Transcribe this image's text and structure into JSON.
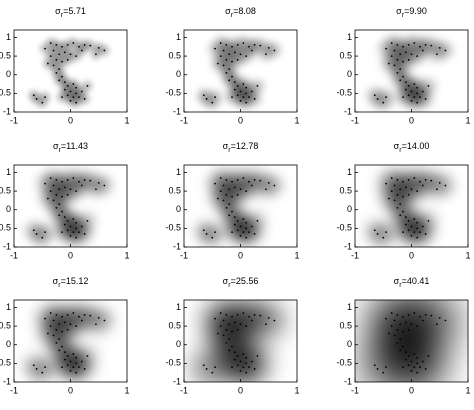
{
  "chart_data": [
    {
      "type": "scatter",
      "title": {
        "symbol": "σ",
        "subscript": "r",
        "text": "=5.71"
      },
      "x": [
        -0.35,
        -0.25,
        -0.15,
        -0.05,
        0.05,
        0.15,
        0.25,
        0.35,
        0.5,
        0.6,
        -0.3,
        -0.2,
        -0.1,
        0,
        0.1,
        -0.35,
        -0.25,
        -0.15,
        -0.3,
        -0.2,
        -0.25,
        -0.15,
        -0.2,
        -0.1,
        -0.05,
        0.05,
        0.1,
        -0.1,
        0,
        0.1,
        0.2,
        -0.05,
        0.05,
        0.15,
        -0.15,
        0,
        0.1,
        0.25,
        0.3,
        -0.4,
        -0.65,
        -0.6,
        -0.5,
        -0.45,
        0.45,
        -0.45,
        0.2,
        -0.05
      ],
      "y": [
        0.85,
        0.8,
        0.75,
        0.8,
        0.85,
        0.75,
        0.8,
        0.78,
        0.72,
        0.65,
        0.65,
        0.55,
        0.6,
        0.55,
        0.5,
        0.5,
        0.4,
        0.35,
        0.25,
        0.15,
        0.05,
        -0.05,
        -0.15,
        -0.2,
        -0.3,
        -0.25,
        -0.35,
        -0.4,
        -0.45,
        -0.5,
        -0.45,
        -0.55,
        -0.6,
        -0.6,
        -0.6,
        -0.7,
        -0.75,
        -0.65,
        -0.3,
        0.3,
        -0.55,
        -0.65,
        -0.75,
        -0.6,
        0.55,
        0.7,
        0.65,
        0.4
      ],
      "xlim": [
        -1,
        1
      ],
      "ylim": [
        -1,
        1.2
      ],
      "xticks": [
        -1,
        0,
        1
      ],
      "yticks": [
        -1,
        -0.5,
        0,
        0.5,
        1
      ]
    },
    {
      "type": "scatter",
      "title": {
        "symbol": "σ",
        "subscript": "r",
        "text": "=8.08"
      },
      "x": [
        -0.35,
        -0.25,
        -0.15,
        -0.05,
        0.05,
        0.15,
        0.25,
        0.35,
        0.5,
        0.6,
        -0.3,
        -0.2,
        -0.1,
        0,
        0.1,
        -0.35,
        -0.25,
        -0.15,
        -0.3,
        -0.2,
        -0.25,
        -0.15,
        -0.2,
        -0.1,
        -0.05,
        0.05,
        0.1,
        -0.1,
        0,
        0.1,
        0.2,
        -0.05,
        0.05,
        0.15,
        -0.15,
        0,
        0.1,
        0.25,
        0.3,
        -0.4,
        -0.65,
        -0.6,
        -0.5,
        -0.45,
        0.45,
        -0.45,
        0.2,
        -0.05
      ],
      "y": [
        0.85,
        0.8,
        0.75,
        0.8,
        0.85,
        0.75,
        0.8,
        0.78,
        0.72,
        0.65,
        0.65,
        0.55,
        0.6,
        0.55,
        0.5,
        0.5,
        0.4,
        0.35,
        0.25,
        0.15,
        0.05,
        -0.05,
        -0.15,
        -0.2,
        -0.3,
        -0.25,
        -0.35,
        -0.4,
        -0.45,
        -0.5,
        -0.45,
        -0.55,
        -0.6,
        -0.6,
        -0.6,
        -0.7,
        -0.75,
        -0.65,
        -0.3,
        0.3,
        -0.55,
        -0.65,
        -0.75,
        -0.6,
        0.55,
        0.7,
        0.65,
        0.4
      ],
      "xlim": [
        -1,
        1
      ],
      "ylim": [
        -1,
        1.2
      ],
      "xticks": [
        -1,
        0,
        1
      ],
      "yticks": [
        -1,
        -0.5,
        0,
        0.5,
        1
      ]
    },
    {
      "type": "scatter",
      "title": {
        "symbol": "σ",
        "subscript": "r",
        "text": "=9.90"
      },
      "x": [
        -0.35,
        -0.25,
        -0.15,
        -0.05,
        0.05,
        0.15,
        0.25,
        0.35,
        0.5,
        0.6,
        -0.3,
        -0.2,
        -0.1,
        0,
        0.1,
        -0.35,
        -0.25,
        -0.15,
        -0.3,
        -0.2,
        -0.25,
        -0.15,
        -0.2,
        -0.1,
        -0.05,
        0.05,
        0.1,
        -0.1,
        0,
        0.1,
        0.2,
        -0.05,
        0.05,
        0.15,
        -0.15,
        0,
        0.1,
        0.25,
        0.3,
        -0.4,
        -0.65,
        -0.6,
        -0.5,
        -0.45,
        0.45,
        -0.45,
        0.2,
        -0.05
      ],
      "y": [
        0.85,
        0.8,
        0.75,
        0.8,
        0.85,
        0.75,
        0.8,
        0.78,
        0.72,
        0.65,
        0.65,
        0.55,
        0.6,
        0.55,
        0.5,
        0.5,
        0.4,
        0.35,
        0.25,
        0.15,
        0.05,
        -0.05,
        -0.15,
        -0.2,
        -0.3,
        -0.25,
        -0.35,
        -0.4,
        -0.45,
        -0.5,
        -0.45,
        -0.55,
        -0.6,
        -0.6,
        -0.6,
        -0.7,
        -0.75,
        -0.65,
        -0.3,
        0.3,
        -0.55,
        -0.65,
        -0.75,
        -0.6,
        0.55,
        0.7,
        0.65,
        0.4
      ],
      "xlim": [
        -1,
        1
      ],
      "ylim": [
        -1,
        1.2
      ],
      "xticks": [
        -1,
        0,
        1
      ],
      "yticks": [
        -1,
        -0.5,
        0,
        0.5,
        1
      ]
    },
    {
      "type": "scatter",
      "title": {
        "symbol": "σ",
        "subscript": "r",
        "text": "=11.43"
      },
      "x": [
        -0.35,
        -0.25,
        -0.15,
        -0.05,
        0.05,
        0.15,
        0.25,
        0.35,
        0.5,
        0.6,
        -0.3,
        -0.2,
        -0.1,
        0,
        0.1,
        -0.35,
        -0.25,
        -0.15,
        -0.3,
        -0.2,
        -0.25,
        -0.15,
        -0.2,
        -0.1,
        -0.05,
        0.05,
        0.1,
        -0.1,
        0,
        0.1,
        0.2,
        -0.05,
        0.05,
        0.15,
        -0.15,
        0,
        0.1,
        0.25,
        0.3,
        -0.4,
        -0.65,
        -0.6,
        -0.5,
        -0.45,
        0.45,
        -0.45,
        0.2,
        -0.05
      ],
      "y": [
        0.85,
        0.8,
        0.75,
        0.8,
        0.85,
        0.75,
        0.8,
        0.78,
        0.72,
        0.65,
        0.65,
        0.55,
        0.6,
        0.55,
        0.5,
        0.5,
        0.4,
        0.35,
        0.25,
        0.15,
        0.05,
        -0.05,
        -0.15,
        -0.2,
        -0.3,
        -0.25,
        -0.35,
        -0.4,
        -0.45,
        -0.5,
        -0.45,
        -0.55,
        -0.6,
        -0.6,
        -0.6,
        -0.7,
        -0.75,
        -0.65,
        -0.3,
        0.3,
        -0.55,
        -0.65,
        -0.75,
        -0.6,
        0.55,
        0.7,
        0.65,
        0.4
      ],
      "xlim": [
        -1,
        1
      ],
      "ylim": [
        -1,
        1.2
      ],
      "xticks": [
        -1,
        0,
        1
      ],
      "yticks": [
        -1,
        -0.5,
        0,
        0.5,
        1
      ]
    },
    {
      "type": "scatter",
      "title": {
        "symbol": "σ",
        "subscript": "r",
        "text": "=12.78"
      },
      "x": [
        -0.35,
        -0.25,
        -0.15,
        -0.05,
        0.05,
        0.15,
        0.25,
        0.35,
        0.5,
        0.6,
        -0.3,
        -0.2,
        -0.1,
        0,
        0.1,
        -0.35,
        -0.25,
        -0.15,
        -0.3,
        -0.2,
        -0.25,
        -0.15,
        -0.2,
        -0.1,
        -0.05,
        0.05,
        0.1,
        -0.1,
        0,
        0.1,
        0.2,
        -0.05,
        0.05,
        0.15,
        -0.15,
        0,
        0.1,
        0.25,
        0.3,
        -0.4,
        -0.65,
        -0.6,
        -0.5,
        -0.45,
        0.45,
        -0.45,
        0.2,
        -0.05
      ],
      "y": [
        0.85,
        0.8,
        0.75,
        0.8,
        0.85,
        0.75,
        0.8,
        0.78,
        0.72,
        0.65,
        0.65,
        0.55,
        0.6,
        0.55,
        0.5,
        0.5,
        0.4,
        0.35,
        0.25,
        0.15,
        0.05,
        -0.05,
        -0.15,
        -0.2,
        -0.3,
        -0.25,
        -0.35,
        -0.4,
        -0.45,
        -0.5,
        -0.45,
        -0.55,
        -0.6,
        -0.6,
        -0.6,
        -0.7,
        -0.75,
        -0.65,
        -0.3,
        0.3,
        -0.55,
        -0.65,
        -0.75,
        -0.6,
        0.55,
        0.7,
        0.65,
        0.4
      ],
      "xlim": [
        -1,
        1
      ],
      "ylim": [
        -1,
        1.2
      ],
      "xticks": [
        -1,
        0,
        1
      ],
      "yticks": [
        -1,
        -0.5,
        0,
        0.5,
        1
      ]
    },
    {
      "type": "scatter",
      "title": {
        "symbol": "σ",
        "subscript": "r",
        "text": "=14.00"
      },
      "x": [
        -0.35,
        -0.25,
        -0.15,
        -0.05,
        0.05,
        0.15,
        0.25,
        0.35,
        0.5,
        0.6,
        -0.3,
        -0.2,
        -0.1,
        0,
        0.1,
        -0.35,
        -0.25,
        -0.15,
        -0.3,
        -0.2,
        -0.25,
        -0.15,
        -0.2,
        -0.1,
        -0.05,
        0.05,
        0.1,
        -0.1,
        0,
        0.1,
        0.2,
        -0.05,
        0.05,
        0.15,
        -0.15,
        0,
        0.1,
        0.25,
        0.3,
        -0.4,
        -0.65,
        -0.6,
        -0.5,
        -0.45,
        0.45,
        -0.45,
        0.2,
        -0.05
      ],
      "y": [
        0.85,
        0.8,
        0.75,
        0.8,
        0.85,
        0.75,
        0.8,
        0.78,
        0.72,
        0.65,
        0.65,
        0.55,
        0.6,
        0.55,
        0.5,
        0.5,
        0.4,
        0.35,
        0.25,
        0.15,
        0.05,
        -0.05,
        -0.15,
        -0.2,
        -0.3,
        -0.25,
        -0.35,
        -0.4,
        -0.45,
        -0.5,
        -0.45,
        -0.55,
        -0.6,
        -0.6,
        -0.6,
        -0.7,
        -0.75,
        -0.65,
        -0.3,
        0.3,
        -0.55,
        -0.65,
        -0.75,
        -0.6,
        0.55,
        0.7,
        0.65,
        0.4
      ],
      "xlim": [
        -1,
        1
      ],
      "ylim": [
        -1,
        1.2
      ],
      "xticks": [
        -1,
        0,
        1
      ],
      "yticks": [
        -1,
        -0.5,
        0,
        0.5,
        1
      ]
    },
    {
      "type": "scatter",
      "title": {
        "symbol": "σ",
        "subscript": "r",
        "text": "=15.12"
      },
      "x": [
        -0.35,
        -0.25,
        -0.15,
        -0.05,
        0.05,
        0.15,
        0.25,
        0.35,
        0.5,
        0.6,
        -0.3,
        -0.2,
        -0.1,
        0,
        0.1,
        -0.35,
        -0.25,
        -0.15,
        -0.3,
        -0.2,
        -0.25,
        -0.15,
        -0.2,
        -0.1,
        -0.05,
        0.05,
        0.1,
        -0.1,
        0,
        0.1,
        0.2,
        -0.05,
        0.05,
        0.15,
        -0.15,
        0,
        0.1,
        0.25,
        0.3,
        -0.4,
        -0.65,
        -0.6,
        -0.5,
        -0.45,
        0.45,
        -0.45,
        0.2,
        -0.05
      ],
      "y": [
        0.85,
        0.8,
        0.75,
        0.8,
        0.85,
        0.75,
        0.8,
        0.78,
        0.72,
        0.65,
        0.65,
        0.55,
        0.6,
        0.55,
        0.5,
        0.5,
        0.4,
        0.35,
        0.25,
        0.15,
        0.05,
        -0.05,
        -0.15,
        -0.2,
        -0.3,
        -0.25,
        -0.35,
        -0.4,
        -0.45,
        -0.5,
        -0.45,
        -0.55,
        -0.6,
        -0.6,
        -0.6,
        -0.7,
        -0.75,
        -0.65,
        -0.3,
        0.3,
        -0.55,
        -0.65,
        -0.75,
        -0.6,
        0.55,
        0.7,
        0.65,
        0.4
      ],
      "xlim": [
        -1,
        1
      ],
      "ylim": [
        -1,
        1.2
      ],
      "xticks": [
        -1,
        0,
        1
      ],
      "yticks": [
        -1,
        -0.5,
        0,
        0.5,
        1
      ]
    },
    {
      "type": "scatter",
      "title": {
        "symbol": "σ",
        "subscript": "r",
        "text": "=25.56"
      },
      "x": [
        -0.35,
        -0.25,
        -0.15,
        -0.05,
        0.05,
        0.15,
        0.25,
        0.35,
        0.5,
        0.6,
        -0.3,
        -0.2,
        -0.1,
        0,
        0.1,
        -0.35,
        -0.25,
        -0.15,
        -0.3,
        -0.2,
        -0.25,
        -0.15,
        -0.2,
        -0.1,
        -0.05,
        0.05,
        0.1,
        -0.1,
        0,
        0.1,
        0.2,
        -0.05,
        0.05,
        0.15,
        -0.15,
        0,
        0.1,
        0.25,
        0.3,
        -0.4,
        -0.65,
        -0.6,
        -0.5,
        -0.45,
        0.45,
        -0.45,
        0.2,
        -0.05
      ],
      "y": [
        0.85,
        0.8,
        0.75,
        0.8,
        0.85,
        0.75,
        0.8,
        0.78,
        0.72,
        0.65,
        0.65,
        0.55,
        0.6,
        0.55,
        0.5,
        0.5,
        0.4,
        0.35,
        0.25,
        0.15,
        0.05,
        -0.05,
        -0.15,
        -0.2,
        -0.3,
        -0.25,
        -0.35,
        -0.4,
        -0.45,
        -0.5,
        -0.45,
        -0.55,
        -0.6,
        -0.6,
        -0.6,
        -0.7,
        -0.75,
        -0.65,
        -0.3,
        0.3,
        -0.55,
        -0.65,
        -0.75,
        -0.6,
        0.55,
        0.7,
        0.65,
        0.4
      ],
      "xlim": [
        -1,
        1
      ],
      "ylim": [
        -1,
        1.2
      ],
      "xticks": [
        -1,
        0,
        1
      ],
      "yticks": [
        -1,
        -0.5,
        0,
        0.5,
        1
      ]
    },
    {
      "type": "scatter",
      "title": {
        "symbol": "σ",
        "subscript": "r",
        "text": "=40.41"
      },
      "x": [
        -0.35,
        -0.25,
        -0.15,
        -0.05,
        0.05,
        0.15,
        0.25,
        0.35,
        0.5,
        0.6,
        -0.3,
        -0.2,
        -0.1,
        0,
        0.1,
        -0.35,
        -0.25,
        -0.15,
        -0.3,
        -0.2,
        -0.25,
        -0.15,
        -0.2,
        -0.1,
        -0.05,
        0.05,
        0.1,
        -0.1,
        0,
        0.1,
        0.2,
        -0.05,
        0.05,
        0.15,
        -0.15,
        0,
        0.1,
        0.25,
        0.3,
        -0.4,
        -0.65,
        -0.6,
        -0.5,
        -0.45,
        0.45,
        -0.45,
        0.2,
        -0.05
      ],
      "y": [
        0.85,
        0.8,
        0.75,
        0.8,
        0.85,
        0.75,
        0.8,
        0.78,
        0.72,
        0.65,
        0.65,
        0.55,
        0.6,
        0.55,
        0.5,
        0.5,
        0.4,
        0.35,
        0.25,
        0.15,
        0.05,
        -0.05,
        -0.15,
        -0.2,
        -0.3,
        -0.25,
        -0.35,
        -0.4,
        -0.45,
        -0.5,
        -0.45,
        -0.55,
        -0.6,
        -0.6,
        -0.6,
        -0.7,
        -0.75,
        -0.65,
        -0.3,
        0.3,
        -0.55,
        -0.65,
        -0.75,
        -0.6,
        0.55,
        0.7,
        0.65,
        0.4
      ],
      "xlim": [
        -1,
        1
      ],
      "ylim": [
        -1,
        1.2
      ],
      "xticks": [
        -1,
        0,
        1
      ],
      "yticks": [
        -1,
        -0.5,
        0,
        0.5,
        1
      ]
    }
  ]
}
